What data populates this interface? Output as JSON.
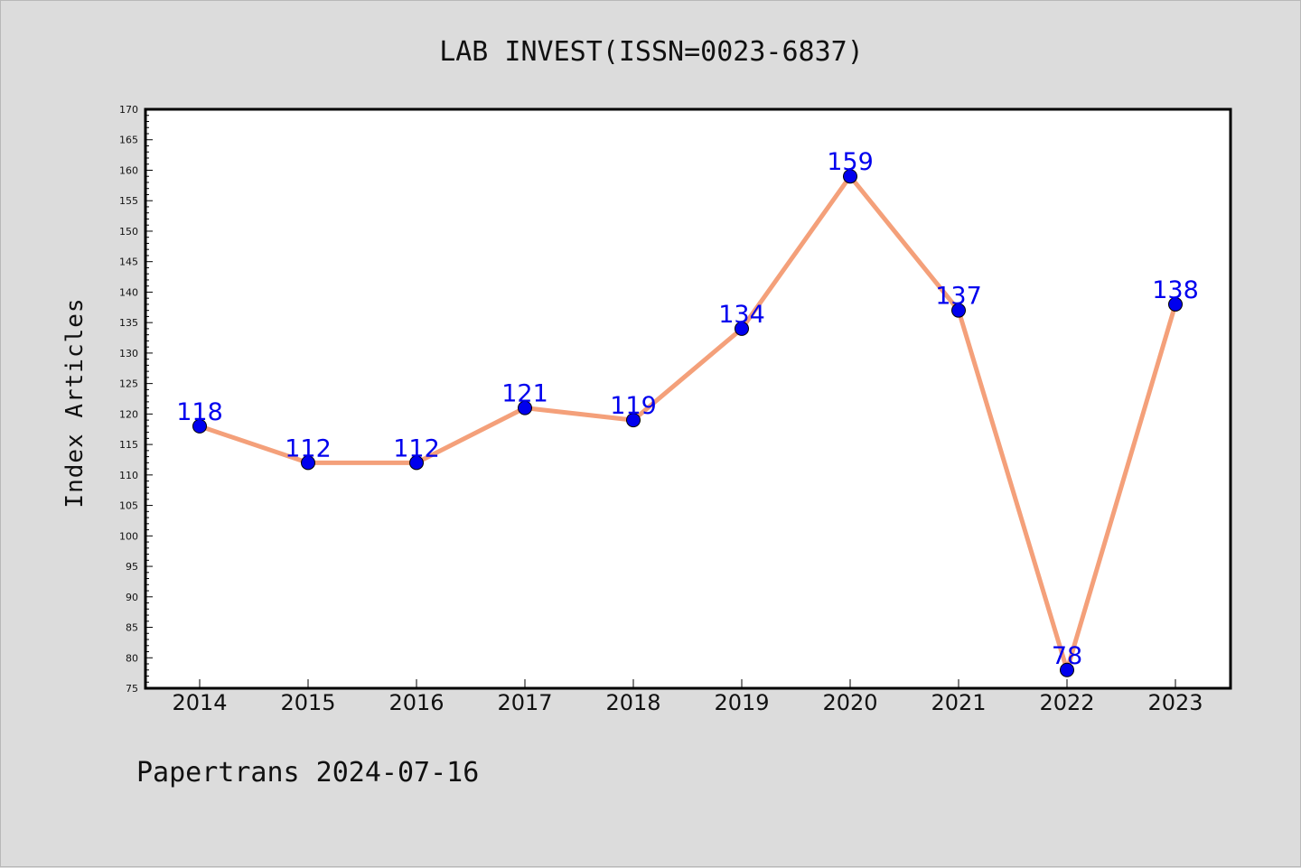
{
  "chart_data": {
    "type": "line",
    "title": "LAB INVEST(ISSN=0023-6837)",
    "xlabel": "",
    "ylabel": "Index Articles",
    "categories": [
      "2014",
      "2015",
      "2016",
      "2017",
      "2018",
      "2019",
      "2020",
      "2021",
      "2022",
      "2023"
    ],
    "values": [
      118,
      112,
      112,
      121,
      119,
      134,
      159,
      137,
      78,
      138
    ],
    "ylim": [
      75,
      170
    ],
    "ytick_step": 5,
    "grid": false,
    "line_color": "#f4a07a",
    "marker_color": "#0000ee",
    "label_color": "#0000ee"
  },
  "footer": "Papertrans 2024-07-16"
}
